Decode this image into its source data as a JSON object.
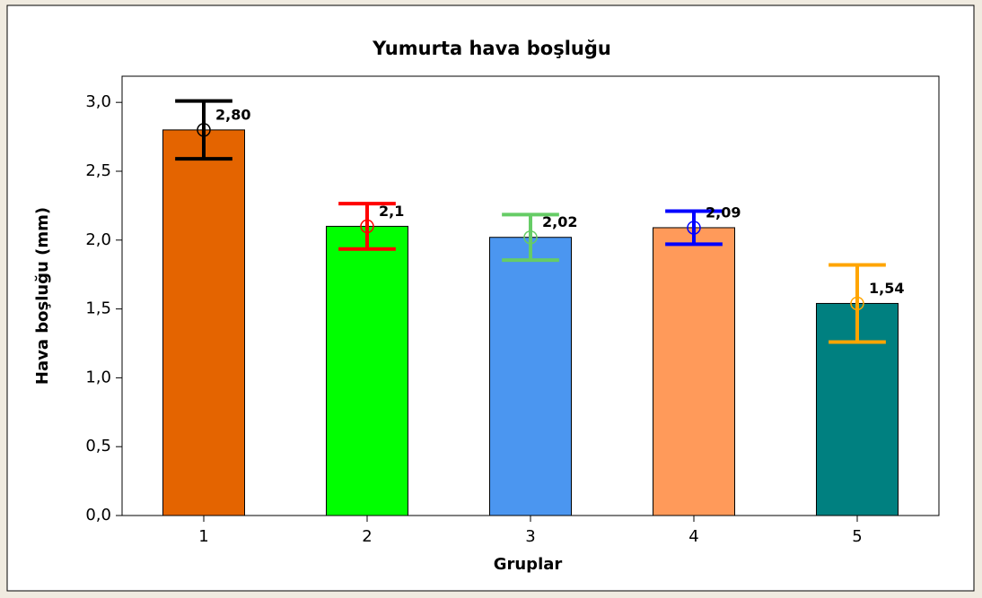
{
  "chart_data": {
    "type": "bar",
    "title": "Yumurta hava boşluğu",
    "x_label": "Gruplar",
    "y_label": "Hava boşluğu (mm)",
    "categories": [
      "1",
      "2",
      "3",
      "4",
      "5"
    ],
    "values": [
      2.8,
      2.1,
      2.02,
      2.09,
      1.54
    ],
    "value_labels": [
      "2,80",
      "2,1",
      "2,02",
      "2,09",
      "1,54"
    ],
    "errors": [
      0.21,
      0.165,
      0.165,
      0.12,
      0.28
    ],
    "colors": [
      "#e46400",
      "#00ff00",
      "#4b96f0",
      "#ff9a5a",
      "#008080"
    ],
    "error_colors": [
      "#000000",
      "#ff0000",
      "#66cc66",
      "#0000ff",
      "#ffa500"
    ],
    "ylim": [
      0,
      3.19
    ],
    "yticks": [
      {
        "value": 0,
        "label": "0,0"
      },
      {
        "value": 0.5,
        "label": "0,5"
      },
      {
        "value": 1,
        "label": "1,0"
      },
      {
        "value": 1.5,
        "label": "1,5"
      },
      {
        "value": 2,
        "label": "2,0"
      },
      {
        "value": 2.5,
        "label": "2,5"
      },
      {
        "value": 3,
        "label": "3,0"
      }
    ],
    "grid": false
  }
}
